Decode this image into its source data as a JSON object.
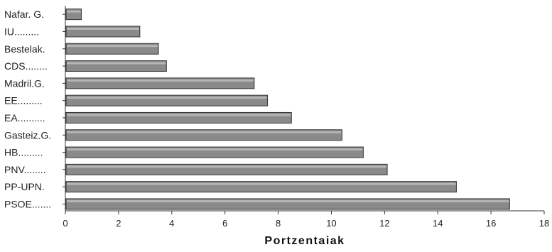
{
  "chart_data": {
    "type": "bar",
    "orientation": "horizontal",
    "categories": [
      "Nafar. G.",
      "IU.........",
      "Bestelak.",
      "CDS........",
      "Madril.G.",
      "EE.........",
      "EA..........",
      "Gasteiz.G.",
      "HB.........",
      "PNV........",
      "PP-UPN.",
      "PSOE......."
    ],
    "values": [
      0.6,
      2.8,
      3.5,
      3.8,
      7.1,
      7.6,
      8.5,
      10.4,
      11.2,
      12.1,
      14.7,
      16.7
    ],
    "xlabel": "Portzentaiak",
    "xlim": [
      0,
      18
    ],
    "xticks": [
      0,
      2,
      4,
      6,
      8,
      10,
      12,
      14,
      16,
      18
    ],
    "grid": false,
    "bar_color": "#8a8a8a"
  }
}
